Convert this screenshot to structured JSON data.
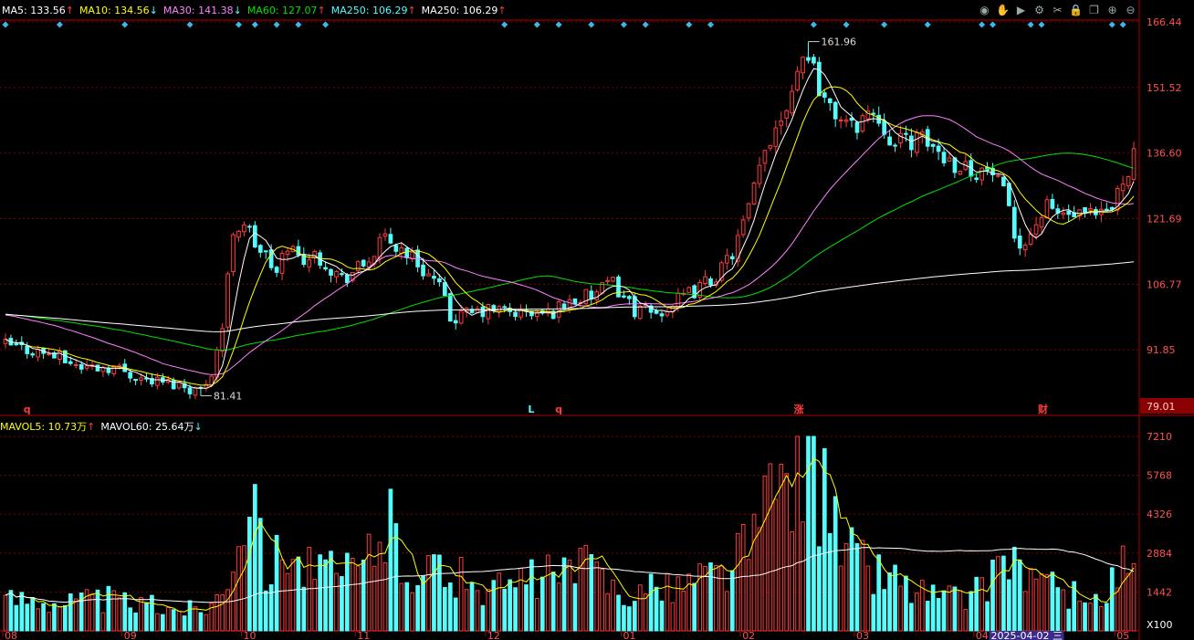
{
  "colors": {
    "up": "#ff3b3b",
    "down": "#54fcfc",
    "ma5": "#ffffff",
    "ma10": "#ffff00",
    "ma30": "#ff80ff",
    "ma60": "#00e000",
    "ma250": "#ffffff",
    "grid": "#800000",
    "axis": "#b00000",
    "price_label": "#ff5050",
    "diamond": "#3cb8e8",
    "mavol5": "#ffff00",
    "mavol60": "#ffffff"
  },
  "legend": {
    "items": [
      {
        "text": "MA5: 133.56",
        "arrow": "↑",
        "color": "#ffffff"
      },
      {
        "text": "MA10: 134.56",
        "arrow": "↓",
        "color": "#ffff00"
      },
      {
        "text": "MA30: 141.38",
        "arrow": "↓",
        "color": "#ff80ff"
      },
      {
        "text": "MA60: 127.07",
        "arrow": "↑",
        "color": "#00e000"
      },
      {
        "text": "MA250: 106.29",
        "arrow": "↑",
        "color": "#54fcfc"
      },
      {
        "text": "MA250: 106.29",
        "arrow": "↑",
        "color": "#ffffff"
      }
    ]
  },
  "vol_legend": {
    "items": [
      {
        "text": "MAVOL5: 10.73万",
        "arrow": "↑",
        "color": "#ffff00"
      },
      {
        "text": "MAVOL60: 25.64万",
        "arrow": "↓",
        "color": "#ffffff"
      }
    ]
  },
  "toolbar": {
    "icons": [
      "eye-icon",
      "hand-icon",
      "play-icon",
      "settings-icon",
      "scissors-icon",
      "lock-icon",
      "window-icon",
      "zoom-in-icon",
      "zoom-out-icon"
    ],
    "glyphs": [
      "◉",
      "✋",
      "▶",
      "⚙",
      "✂",
      "🔒",
      "❐",
      "⊕",
      "⊖"
    ]
  },
  "chart_data": {
    "type": "candlestick",
    "price_axis": {
      "ticks": [
        166.44,
        151.52,
        136.6,
        121.69,
        106.77,
        91.85
      ],
      "min_label": "79.01",
      "ylim": [
        79.01,
        166.44
      ]
    },
    "volume_axis": {
      "ticks": [
        "7210",
        "5768",
        "4326",
        "2884",
        "1442"
      ],
      "unit": "X100",
      "ylim": [
        0,
        7210
      ]
    },
    "x_ticks": [
      {
        "label": "08",
        "index": 0
      },
      {
        "label": "09",
        "index": 22
      },
      {
        "label": "10",
        "index": 44
      },
      {
        "label": "11",
        "index": 65
      },
      {
        "label": "12",
        "index": 89
      },
      {
        "label": "01",
        "index": 114
      },
      {
        "label": "02",
        "index": 136
      },
      {
        "label": "03",
        "index": 157
      },
      {
        "label": "04",
        "index": 179
      },
      {
        "label": "05",
        "index": 205
      }
    ],
    "cursor_date": "2025-04-02 三",
    "annotations": [
      {
        "text": "161.96",
        "index": 148,
        "price": 161.96
      },
      {
        "text": "81.41",
        "index": 36,
        "price": 81.41
      }
    ],
    "markers": [
      {
        "text": "q",
        "index": 4
      },
      {
        "text": "L",
        "index": 97
      },
      {
        "text": "q",
        "index": 102
      },
      {
        "text": "涨",
        "index": 146
      },
      {
        "text": "财",
        "index": 191
      }
    ],
    "diamond_indices": [
      0,
      10,
      22,
      34,
      43,
      46,
      50,
      54,
      59,
      92,
      98,
      102,
      108,
      114,
      118,
      126,
      130,
      149,
      155,
      162,
      170,
      180,
      182,
      189,
      191,
      204,
      206
    ],
    "anchors": [
      [
        0,
        93
      ],
      [
        8,
        91
      ],
      [
        14,
        88
      ],
      [
        20,
        88
      ],
      [
        26,
        85
      ],
      [
        32,
        84
      ],
      [
        36,
        82.5
      ],
      [
        38,
        87
      ],
      [
        40,
        97
      ],
      [
        42,
        119
      ],
      [
        44,
        121
      ],
      [
        46,
        116
      ],
      [
        48,
        113
      ],
      [
        50,
        109
      ],
      [
        52,
        116
      ],
      [
        54,
        113
      ],
      [
        58,
        113
      ],
      [
        62,
        108
      ],
      [
        66,
        111
      ],
      [
        70,
        117
      ],
      [
        74,
        114
      ],
      [
        78,
        109
      ],
      [
        80,
        106
      ],
      [
        82,
        99
      ],
      [
        86,
        100
      ],
      [
        90,
        101
      ],
      [
        96,
        100
      ],
      [
        100,
        100
      ],
      [
        104,
        103
      ],
      [
        108,
        104
      ],
      [
        112,
        107
      ],
      [
        116,
        101
      ],
      [
        120,
        100
      ],
      [
        124,
        103
      ],
      [
        128,
        106
      ],
      [
        132,
        110
      ],
      [
        134,
        114
      ],
      [
        136,
        120
      ],
      [
        138,
        128
      ],
      [
        140,
        137
      ],
      [
        142,
        143
      ],
      [
        144,
        148
      ],
      [
        146,
        156
      ],
      [
        148,
        160
      ],
      [
        150,
        152
      ],
      [
        152,
        146
      ],
      [
        154,
        145
      ],
      [
        156,
        142
      ],
      [
        158,
        145
      ],
      [
        160,
        146
      ],
      [
        162,
        143
      ],
      [
        164,
        138
      ],
      [
        166,
        140
      ],
      [
        170,
        139
      ],
      [
        174,
        135
      ],
      [
        178,
        133
      ],
      [
        182,
        132
      ],
      [
        184,
        127
      ],
      [
        186,
        118
      ],
      [
        188,
        116
      ],
      [
        190,
        121
      ],
      [
        192,
        124
      ],
      [
        194,
        123
      ],
      [
        198,
        122
      ],
      [
        202,
        122
      ],
      [
        204,
        124
      ],
      [
        206,
        131
      ],
      [
        208,
        136
      ]
    ],
    "volume_anchors": [
      [
        0,
        1200
      ],
      [
        6,
        1300
      ],
      [
        12,
        1100
      ],
      [
        18,
        1200
      ],
      [
        24,
        1000
      ],
      [
        30,
        900
      ],
      [
        36,
        800
      ],
      [
        40,
        1500
      ],
      [
        42,
        3500
      ],
      [
        44,
        5000
      ],
      [
        46,
        3800
      ],
      [
        48,
        2500
      ],
      [
        50,
        2800
      ],
      [
        52,
        3800
      ],
      [
        54,
        2600
      ],
      [
        58,
        2200
      ],
      [
        62,
        2000
      ],
      [
        66,
        2500
      ],
      [
        70,
        4200
      ],
      [
        74,
        2500
      ],
      [
        78,
        2300
      ],
      [
        82,
        2000
      ],
      [
        86,
        1800
      ],
      [
        90,
        1500
      ],
      [
        96,
        1800
      ],
      [
        100,
        2000
      ],
      [
        104,
        2200
      ],
      [
        108,
        2300
      ],
      [
        112,
        1700
      ],
      [
        116,
        1400
      ],
      [
        120,
        1500
      ],
      [
        124,
        1700
      ],
      [
        128,
        2000
      ],
      [
        132,
        2200
      ],
      [
        134,
        2600
      ],
      [
        136,
        3000
      ],
      [
        138,
        3500
      ],
      [
        140,
        4200
      ],
      [
        142,
        5300
      ],
      [
        144,
        6000
      ],
      [
        146,
        6900
      ],
      [
        148,
        6300
      ],
      [
        150,
        5200
      ],
      [
        152,
        4200
      ],
      [
        154,
        3400
      ],
      [
        156,
        2900
      ],
      [
        158,
        2500
      ],
      [
        160,
        2300
      ],
      [
        162,
        2100
      ],
      [
        164,
        2000
      ],
      [
        168,
        1500
      ],
      [
        172,
        1300
      ],
      [
        176,
        1200
      ],
      [
        180,
        1500
      ],
      [
        182,
        2400
      ],
      [
        184,
        2700
      ],
      [
        186,
        2600
      ],
      [
        188,
        2300
      ],
      [
        190,
        1800
      ],
      [
        194,
        1500
      ],
      [
        198,
        1200
      ],
      [
        202,
        1100
      ],
      [
        204,
        1700
      ],
      [
        206,
        2400
      ],
      [
        208,
        2200
      ]
    ],
    "n_bars": 209
  }
}
